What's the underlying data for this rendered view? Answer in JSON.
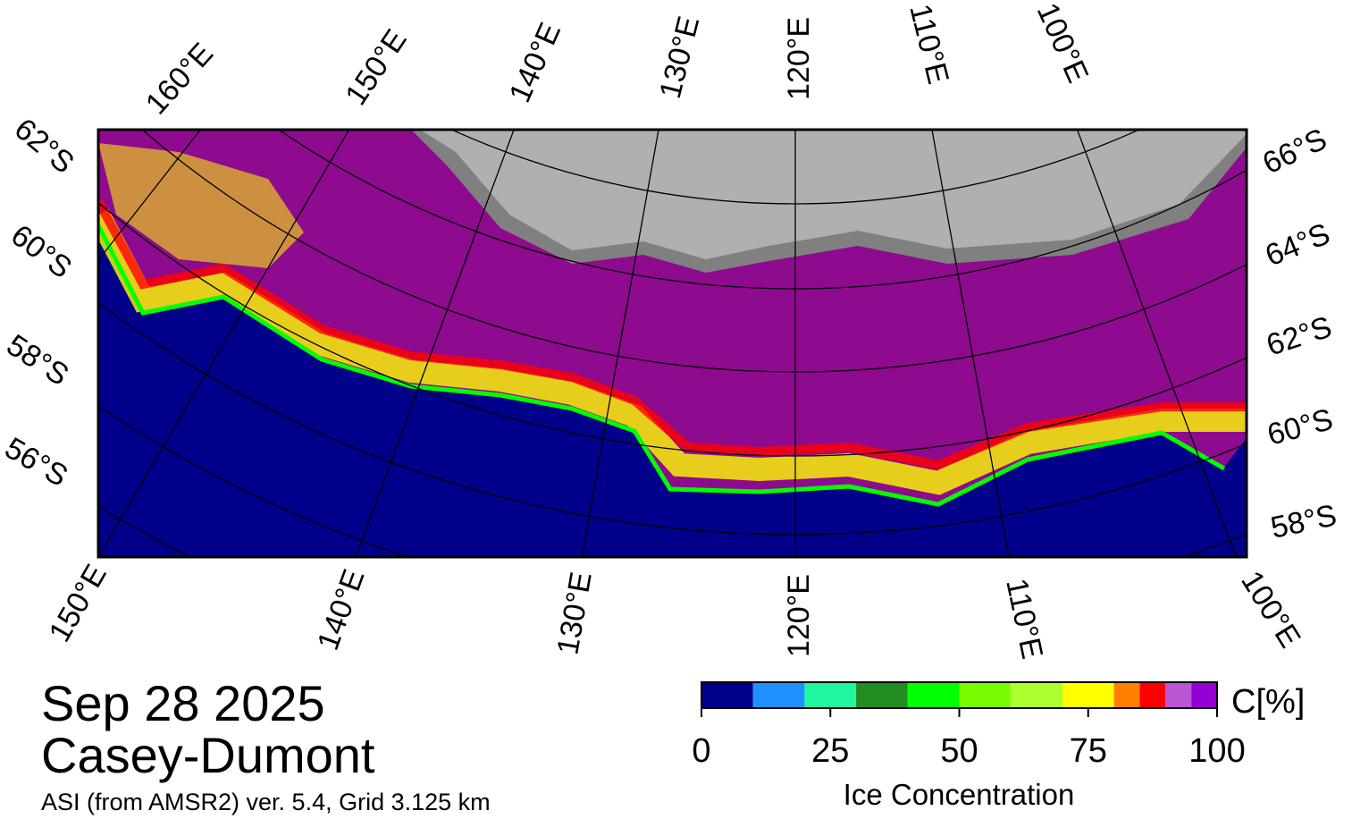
{
  "map": {
    "date": "Sep 28 2025",
    "region": "Casey-Dumont",
    "source": "ASI (from AMSR2) ver. 5.4,  Grid 3.125 km",
    "top_labels": [
      "160°E",
      "150°E",
      "140°E",
      "130°E",
      "120°E",
      "110°E",
      "100°E"
    ],
    "right_labels": [
      "66°S",
      "64°S",
      "62°S",
      "60°S",
      "58°S"
    ],
    "left_labels": [
      "62°S",
      "60°S",
      "58°S",
      "56°S"
    ],
    "bottom_labels": [
      "150°E",
      "140°E",
      "130°E",
      "120°E",
      "110°E",
      "100°E"
    ]
  },
  "colorbar": {
    "unit_label": "C[%]",
    "label": "Ice Concentration",
    "lim": [
      0,
      100
    ],
    "ticks": [
      0,
      25,
      50,
      75,
      100
    ],
    "bounds": [
      0,
      10,
      20,
      30,
      40,
      50,
      60,
      70,
      80,
      85,
      90,
      95,
      100
    ],
    "colors": [
      "#00008b",
      "#1e90ff",
      "#20f5a0",
      "#228b22",
      "#00ff00",
      "#7cfc00",
      "#adff2f",
      "#ffff00",
      "#ff7f00",
      "#ff0000",
      "#ba55d3",
      "#9400d3"
    ]
  }
}
